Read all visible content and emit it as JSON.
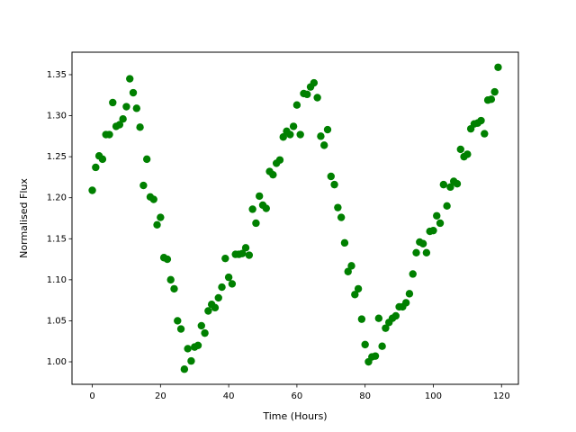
{
  "chart_data": {
    "type": "scatter",
    "x_label": "Time (Hours)",
    "y_label": "Normalised Flux",
    "color": "#008000",
    "x": [
      0,
      1,
      2,
      3,
      4,
      5,
      6,
      7,
      8,
      9,
      10,
      11,
      12,
      13,
      14,
      15,
      16,
      17,
      18,
      19,
      20,
      21,
      22,
      23,
      24,
      25,
      26,
      27,
      28,
      29,
      30,
      31,
      32,
      33,
      34,
      35,
      36,
      37,
      38,
      39,
      40,
      41,
      42,
      43,
      44,
      45,
      46,
      47,
      48,
      49,
      50,
      51,
      52,
      53,
      54,
      55,
      56,
      57,
      58,
      59,
      60,
      61,
      62,
      63,
      64,
      65,
      66,
      67,
      68,
      69,
      70,
      71,
      72,
      73,
      74,
      75,
      76,
      77,
      78,
      79,
      80,
      81,
      82,
      83,
      84,
      85,
      86,
      87,
      88,
      89,
      90,
      91,
      92,
      93,
      94,
      95,
      96,
      97,
      98,
      99,
      100,
      101,
      102,
      103,
      104,
      105,
      106,
      107,
      108,
      109,
      110,
      111,
      112,
      113,
      114,
      115,
      116,
      117,
      118,
      119
    ],
    "values": [
      1.209,
      1.237,
      1.251,
      1.247,
      1.277,
      1.277,
      1.316,
      1.287,
      1.289,
      1.296,
      1.311,
      1.345,
      1.328,
      1.309,
      1.286,
      1.215,
      1.247,
      1.201,
      1.198,
      1.167,
      1.176,
      1.127,
      1.125,
      1.1,
      1.089,
      1.05,
      1.04,
      0.991,
      1.016,
      1.001,
      1.018,
      1.02,
      1.044,
      1.035,
      1.062,
      1.07,
      1.066,
      1.078,
      1.091,
      1.126,
      1.103,
      1.095,
      1.131,
      1.131,
      1.132,
      1.139,
      1.13,
      1.186,
      1.169,
      1.202,
      1.191,
      1.187,
      1.232,
      1.228,
      1.242,
      1.246,
      1.274,
      1.281,
      1.277,
      1.287,
      1.313,
      1.277,
      1.327,
      1.326,
      1.335,
      1.34,
      1.322,
      1.275,
      1.264,
      1.283,
      1.226,
      1.216,
      1.188,
      1.176,
      1.145,
      1.11,
      1.117,
      1.082,
      1.089,
      1.052,
      1.021,
      1.0,
      1.006,
      1.007,
      1.053,
      1.019,
      1.041,
      1.048,
      1.053,
      1.056,
      1.067,
      1.067,
      1.072,
      1.083,
      1.107,
      1.133,
      1.146,
      1.144,
      1.133,
      1.159,
      1.16,
      1.178,
      1.169,
      1.216,
      1.19,
      1.213,
      1.22,
      1.217,
      1.259,
      1.25,
      1.253,
      1.284,
      1.29,
      1.291,
      1.294,
      1.278,
      1.319,
      1.32,
      1.329,
      1.359
    ],
    "xlim": [
      -5.95,
      124.95
    ],
    "ylim": [
      0.9726,
      1.3774
    ],
    "xticks": [
      0,
      20,
      40,
      60,
      80,
      100,
      120
    ],
    "yticks": [
      {
        "value": 1.0,
        "label": "1.00"
      },
      {
        "value": 1.05,
        "label": "1.05"
      },
      {
        "value": 1.1,
        "label": "1.10"
      },
      {
        "value": 1.15,
        "label": "1.15"
      },
      {
        "value": 1.2,
        "label": "1.20"
      },
      {
        "value": 1.25,
        "label": "1.25"
      },
      {
        "value": 1.3,
        "label": "1.30"
      },
      {
        "value": 1.35,
        "label": "1.35"
      }
    ]
  }
}
